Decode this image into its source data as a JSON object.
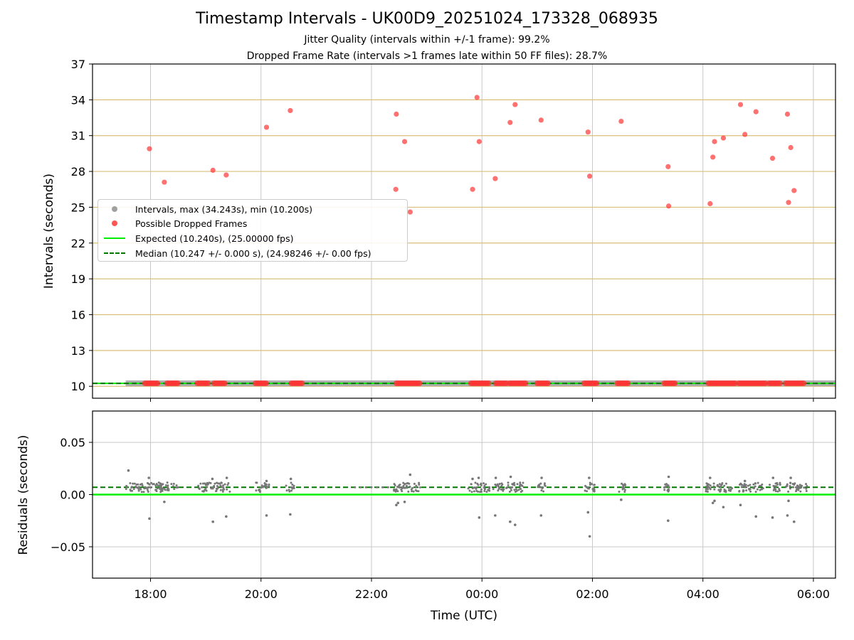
{
  "title": "Timestamp Intervals - UK00D9_20251024_173328_068935",
  "subtitle_1": "Jitter Quality (intervals within +/-1 frame): 99.2%",
  "subtitle_2": "Dropped Frame Rate (intervals >1 frames late within 50 FF files): 28.7%",
  "colors": {
    "intervals": "#a0a0a0",
    "dropped": "#ff3333",
    "expected": "#00ee00",
    "median": "#007700",
    "hgrid_top": "#d9bf7a",
    "vgrid": "#c8c8c8",
    "residual_points": "#777777"
  },
  "chart_data": [
    {
      "type": "scatter",
      "panel": "top",
      "title": "",
      "ylabel": "Intervals (seconds)",
      "xlabel": "",
      "x_axis": "time",
      "x_unit": "hours relative to 00:00 UTC",
      "xlim": [
        -7.05,
        6.4
      ],
      "ylim": [
        9.0,
        37.0
      ],
      "yticks": [
        10,
        13,
        16,
        19,
        22,
        25,
        28,
        31,
        34,
        37
      ],
      "grid": "horizontal dashed-like at y ticks, vertical at x ticks",
      "legend_position": "center-left",
      "legend": [
        "Intervals, max (34.243s), min (10.200s)",
        "Possible Dropped Frames",
        "Expected (10.240s), (25.00000 fps)",
        "Median (10.247 +/- 0.000 s), (24.98246 +/- 0.00 fps)"
      ],
      "expected_line": 10.24,
      "median_line": 10.247,
      "interval_band": {
        "x_start": -6.45,
        "x_end": 6.4,
        "y": 10.25
      },
      "dropped_frames": [
        [
          -6.02,
          29.9
        ],
        [
          -5.75,
          27.1
        ],
        [
          -4.87,
          28.1
        ],
        [
          -4.63,
          27.7
        ],
        [
          -3.9,
          31.7
        ],
        [
          -3.47,
          33.1
        ],
        [
          -1.55,
          32.8
        ],
        [
          -1.56,
          26.5
        ],
        [
          -1.4,
          30.5
        ],
        [
          -1.3,
          24.6
        ],
        [
          -0.17,
          26.5
        ],
        [
          -0.09,
          34.2
        ],
        [
          -0.05,
          30.5
        ],
        [
          0.24,
          27.4
        ],
        [
          0.51,
          32.1
        ],
        [
          0.6,
          33.6
        ],
        [
          1.07,
          32.3
        ],
        [
          1.92,
          31.3
        ],
        [
          1.95,
          27.6
        ],
        [
          2.52,
          32.2
        ],
        [
          3.37,
          28.4
        ],
        [
          3.38,
          25.1
        ],
        [
          4.13,
          25.3
        ],
        [
          4.18,
          29.2
        ],
        [
          4.21,
          30.5
        ],
        [
          4.37,
          30.8
        ],
        [
          4.68,
          33.6
        ],
        [
          4.76,
          31.1
        ],
        [
          4.96,
          33.0
        ],
        [
          5.26,
          29.1
        ],
        [
          5.53,
          32.8
        ],
        [
          5.55,
          25.4
        ],
        [
          5.59,
          30.0
        ],
        [
          5.65,
          26.4
        ]
      ],
      "dropped_clusters_at_10": [
        [
          -6.1,
          -5.85
        ],
        [
          -5.7,
          -5.5
        ],
        [
          -5.15,
          -4.95
        ],
        [
          -4.85,
          -4.65
        ],
        [
          -4.1,
          -3.9
        ],
        [
          -3.45,
          -3.25
        ],
        [
          -1.55,
          -1.1
        ],
        [
          -0.2,
          0.15
        ],
        [
          0.25,
          0.45
        ],
        [
          0.5,
          0.8
        ],
        [
          1.0,
          1.2
        ],
        [
          1.85,
          2.1
        ],
        [
          2.45,
          2.65
        ],
        [
          3.3,
          3.5
        ],
        [
          4.1,
          4.6
        ],
        [
          4.65,
          5.15
        ],
        [
          5.2,
          5.4
        ],
        [
          5.5,
          5.85
        ]
      ],
      "xtick_labels": [
        "18:00",
        "20:00",
        "22:00",
        "00:00",
        "02:00",
        "04:00",
        "06:00"
      ],
      "xtick_values": [
        -6,
        -4,
        -2,
        0,
        2,
        4,
        6
      ]
    },
    {
      "type": "scatter",
      "panel": "bottom",
      "title": "",
      "ylabel": "Residuals (seconds)",
      "xlabel": "Time (UTC)",
      "xlim": [
        -7.05,
        6.4
      ],
      "ylim": [
        -0.08,
        0.08
      ],
      "yticks": [
        0.05,
        0.0,
        -0.05
      ],
      "ytick_labels": [
        "0.05",
        "0.00",
        "−0.05"
      ],
      "xtick_labels": [
        "18:00",
        "20:00",
        "22:00",
        "00:00",
        "02:00",
        "04:00",
        "06:00"
      ],
      "xtick_values": [
        -6,
        -4,
        -2,
        0,
        2,
        4,
        6
      ],
      "expected_line": 0.0,
      "median_line": 0.007,
      "residual_outliers": [
        [
          -6.4,
          0.023
        ],
        [
          -6.02,
          -0.023
        ],
        [
          -6.03,
          0.016
        ],
        [
          -5.75,
          -0.007
        ],
        [
          -4.87,
          -0.026
        ],
        [
          -4.88,
          0.015
        ],
        [
          -4.63,
          -0.021
        ],
        [
          -4.62,
          0.016
        ],
        [
          -3.9,
          -0.02
        ],
        [
          -3.9,
          0.013
        ],
        [
          -3.47,
          -0.019
        ],
        [
          -3.46,
          0.015
        ],
        [
          -1.55,
          -0.01
        ],
        [
          -1.52,
          -0.008
        ],
        [
          -1.4,
          -0.007
        ],
        [
          -1.3,
          0.019
        ],
        [
          -0.17,
          0.015
        ],
        [
          -0.05,
          -0.022
        ],
        [
          -0.06,
          0.016
        ],
        [
          0.24,
          -0.02
        ],
        [
          0.25,
          0.016
        ],
        [
          0.51,
          -0.026
        ],
        [
          0.52,
          0.017
        ],
        [
          0.6,
          -0.029
        ],
        [
          1.07,
          -0.02
        ],
        [
          1.08,
          0.016
        ],
        [
          1.92,
          -0.017
        ],
        [
          1.95,
          -0.04
        ],
        [
          1.94,
          0.016
        ],
        [
          2.52,
          -0.005
        ],
        [
          3.37,
          -0.025
        ],
        [
          3.38,
          0.017
        ],
        [
          4.13,
          0.016
        ],
        [
          4.18,
          -0.008
        ],
        [
          4.21,
          -0.006
        ],
        [
          4.37,
          -0.012
        ],
        [
          4.68,
          -0.01
        ],
        [
          4.76,
          0.013
        ],
        [
          4.96,
          -0.021
        ],
        [
          5.26,
          -0.022
        ],
        [
          5.27,
          0.016
        ],
        [
          5.53,
          -0.02
        ],
        [
          5.55,
          -0.006
        ],
        [
          5.59,
          0.016
        ],
        [
          5.65,
          -0.026
        ]
      ],
      "residual_clusters": [
        [
          -6.45,
          -5.5
        ],
        [
          -5.15,
          -4.55
        ],
        [
          -4.1,
          -3.85
        ],
        [
          -3.55,
          -3.4
        ],
        [
          -1.6,
          -1.1
        ],
        [
          -0.25,
          0.15
        ],
        [
          0.2,
          0.75
        ],
        [
          1.0,
          1.15
        ],
        [
          1.85,
          2.05
        ],
        [
          2.45,
          2.6
        ],
        [
          3.3,
          3.45
        ],
        [
          4.05,
          4.55
        ],
        [
          4.65,
          5.1
        ],
        [
          5.2,
          5.4
        ],
        [
          5.5,
          5.9
        ]
      ]
    }
  ]
}
